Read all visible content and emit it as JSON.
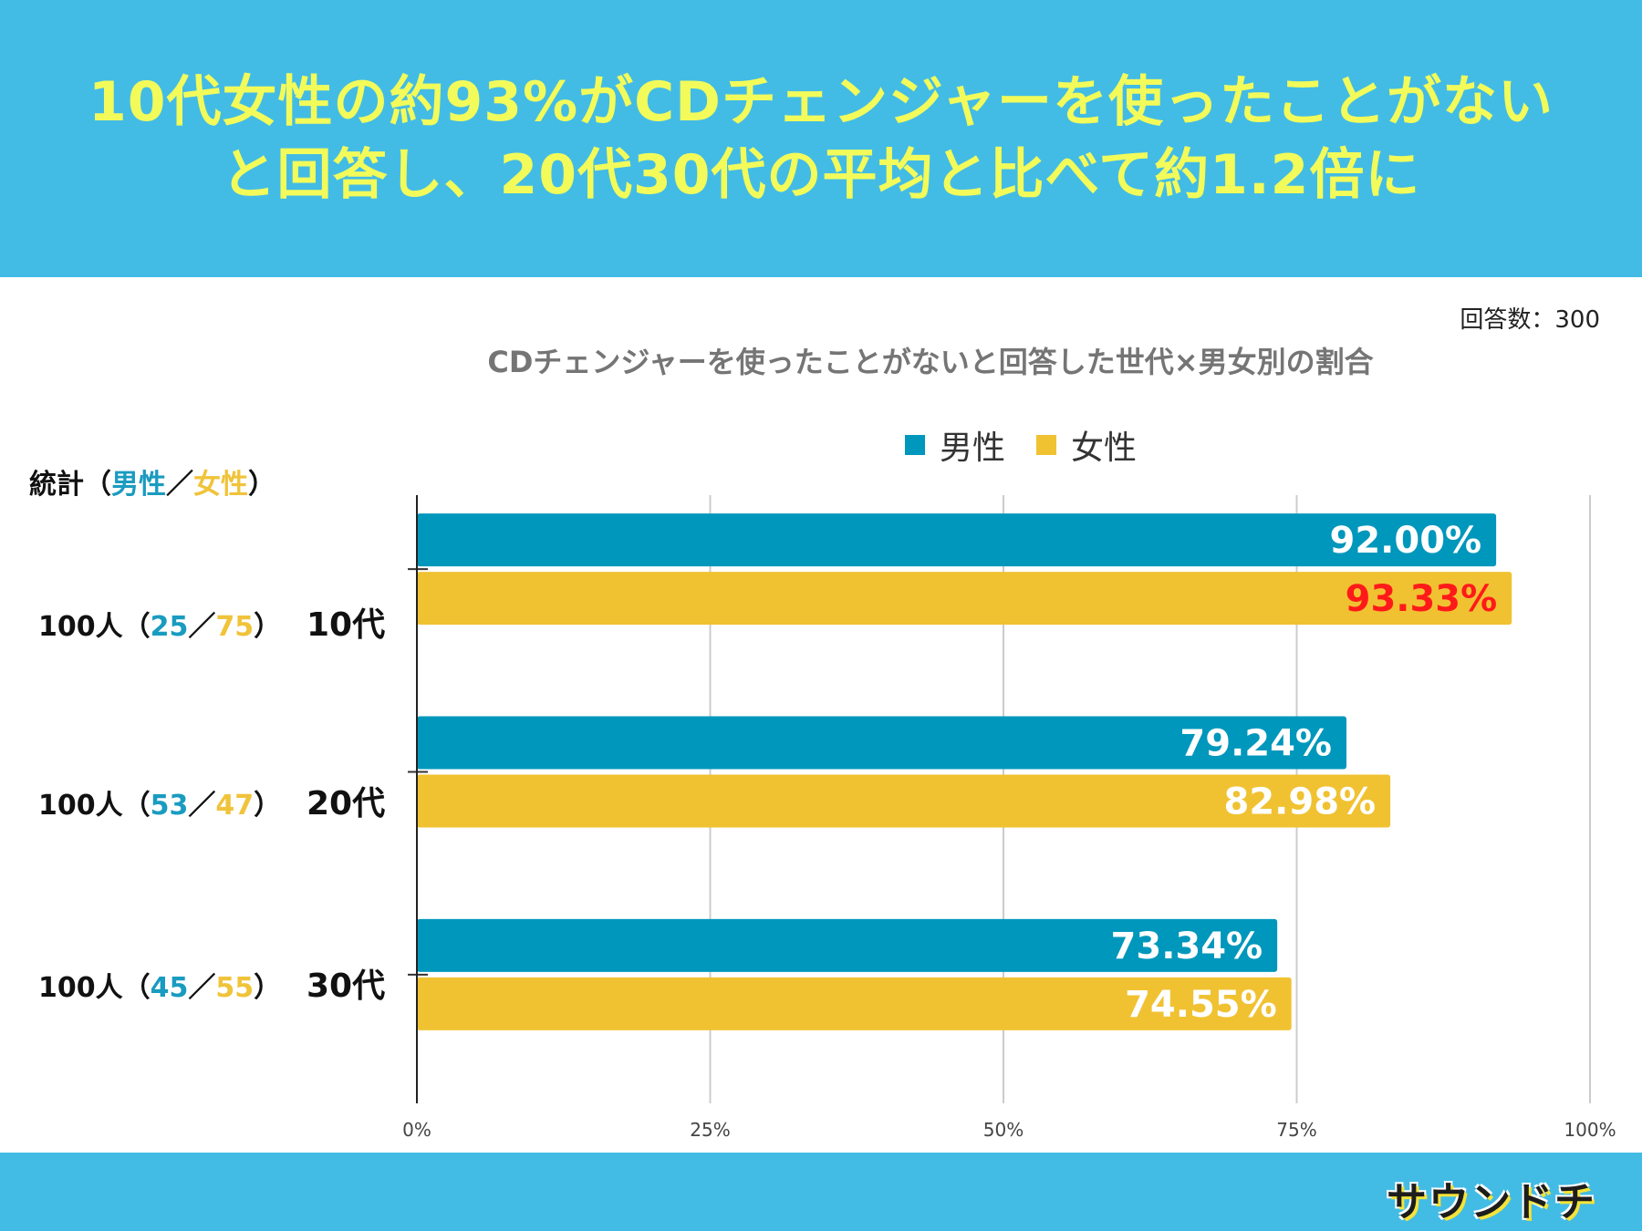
{
  "headline": {
    "line1": "10代女性の約93%がCDチェンジャーを使ったことがない",
    "line2": "と回答し、20代30代の平均と比べて約1.2倍に"
  },
  "respondents_label": "回答数：300",
  "stats_header": {
    "prefix": "統計（",
    "male": "男性",
    "sep": "／",
    "female": "女性",
    "suffix": "）"
  },
  "rows": [
    {
      "total": "100人（",
      "male": "25",
      "sep": "／",
      "female": "75",
      "close": "）",
      "category": "10代"
    },
    {
      "total": "100人（",
      "male": "53",
      "sep": "／",
      "female": "47",
      "close": "）",
      "category": "20代"
    },
    {
      "total": "100人（",
      "male": "45",
      "sep": "／",
      "female": "55",
      "close": "）",
      "category": "30代"
    }
  ],
  "logo_text": "サウンドチ",
  "colors": {
    "male": "#0097bc",
    "female": "#f0c232",
    "highlight_label": "#ff1a1a",
    "label_default": "#ffffff",
    "band": "#43bce5",
    "headline": "#f2fb5a"
  },
  "chart_data": {
    "type": "bar",
    "orientation": "horizontal",
    "title": "CDチェンジャーを使ったことがないと回答した世代×男女別の割合",
    "categories": [
      "10代",
      "20代",
      "30代"
    ],
    "series": [
      {
        "name": "男性",
        "values": [
          92.0,
          79.24,
          73.34
        ],
        "labels": [
          "92.00%",
          "79.24%",
          "73.34%"
        ]
      },
      {
        "name": "女性",
        "values": [
          93.33,
          82.98,
          74.55
        ],
        "labels": [
          "93.33%",
          "82.98%",
          "74.55%"
        ]
      }
    ],
    "highlight": {
      "series": 1,
      "index": 0
    },
    "xlim": [
      0,
      100
    ],
    "xticks": [
      0,
      25,
      50,
      75,
      100
    ],
    "xtick_labels": [
      "0%",
      "25%",
      "50%",
      "75%",
      "100%"
    ],
    "grid": true,
    "legend": "top-center"
  }
}
